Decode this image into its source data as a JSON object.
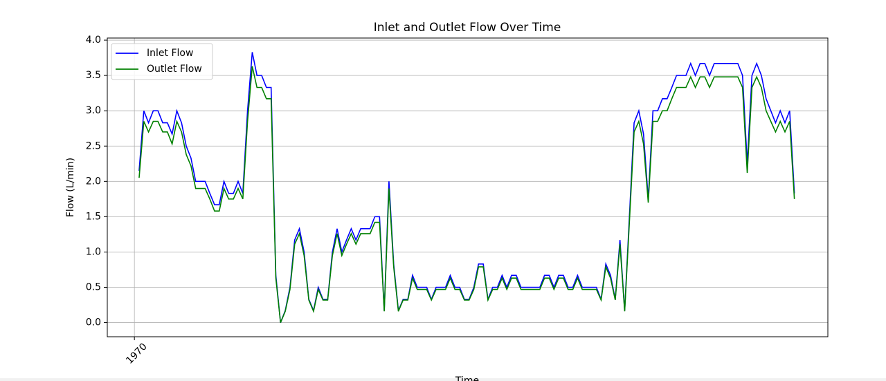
{
  "chart_data": {
    "type": "line",
    "title": "Inlet and Outlet Flow Over Time",
    "xlabel": "Time",
    "ylabel": "Flow (L/min)",
    "x": [
      0,
      1,
      2,
      3,
      4,
      5,
      6,
      7,
      8,
      9,
      10,
      11,
      12,
      13,
      14,
      15,
      16,
      17,
      18,
      19,
      20,
      21,
      22,
      23,
      24,
      25,
      26,
      27,
      28,
      29,
      30,
      31,
      32,
      33,
      34,
      35,
      36,
      37,
      38,
      39,
      40,
      41,
      42,
      43,
      44,
      45,
      46,
      47,
      48,
      49,
      50,
      51,
      52,
      53,
      54,
      55,
      56,
      57,
      58,
      59,
      60,
      61,
      62,
      63,
      64,
      65,
      66,
      67,
      68,
      69,
      70,
      71,
      72,
      73,
      74,
      75,
      76,
      77,
      78,
      79,
      80,
      81,
      82,
      83,
      84,
      85,
      86,
      87,
      88,
      89,
      90,
      91,
      92,
      93,
      94,
      95,
      96,
      97,
      98,
      99,
      100,
      101,
      102,
      103,
      104,
      105,
      106,
      107,
      108,
      109,
      110,
      111,
      112,
      113,
      114,
      115,
      116,
      117,
      118,
      119,
      120,
      121,
      122,
      123,
      124,
      125,
      126,
      127,
      128,
      129,
      130,
      131,
      132,
      133,
      134,
      135,
      136,
      137,
      138,
      139
    ],
    "series": [
      {
        "name": "Inlet Flow",
        "color": "#0000ff",
        "values": [
          2.15,
          3.0,
          2.83,
          3.0,
          3.0,
          2.83,
          2.83,
          2.67,
          3.0,
          2.83,
          2.5,
          2.33,
          2.0,
          2.0,
          2.0,
          1.83,
          1.67,
          1.67,
          2.0,
          1.83,
          1.83,
          2.0,
          1.83,
          3.0,
          3.83,
          3.5,
          3.5,
          3.33,
          3.33,
          0.67,
          0.0,
          0.17,
          0.5,
          1.17,
          1.33,
          1.0,
          0.33,
          0.17,
          0.5,
          0.33,
          0.33,
          1.0,
          1.33,
          1.0,
          1.17,
          1.33,
          1.17,
          1.33,
          1.33,
          1.33,
          1.5,
          1.5,
          0.17,
          2.0,
          0.83,
          0.17,
          0.33,
          0.33,
          0.67,
          0.5,
          0.5,
          0.5,
          0.33,
          0.5,
          0.5,
          0.5,
          0.67,
          0.5,
          0.5,
          0.33,
          0.33,
          0.5,
          0.83,
          0.83,
          0.33,
          0.5,
          0.5,
          0.67,
          0.5,
          0.67,
          0.67,
          0.5,
          0.5,
          0.5,
          0.5,
          0.5,
          0.67,
          0.67,
          0.5,
          0.67,
          0.67,
          0.5,
          0.5,
          0.67,
          0.5,
          0.5,
          0.5,
          0.5,
          0.33,
          0.83,
          0.67,
          0.33,
          1.17,
          0.17,
          1.5,
          2.83,
          3.0,
          2.67,
          1.75,
          3.0,
          3.0,
          3.17,
          3.17,
          3.33,
          3.5,
          3.5,
          3.5,
          3.67,
          3.5,
          3.67,
          3.67,
          3.5,
          3.67,
          3.67,
          3.67,
          3.67,
          3.67,
          3.67,
          3.5,
          2.25,
          3.5,
          3.67,
          3.5,
          3.17,
          3.0,
          2.83,
          3.0,
          2.83,
          3.0,
          1.83
        ]
      },
      {
        "name": "Outlet Flow",
        "color": "#008000",
        "values": [
          2.05,
          2.85,
          2.7,
          2.85,
          2.85,
          2.7,
          2.7,
          2.53,
          2.85,
          2.7,
          2.38,
          2.22,
          1.9,
          1.9,
          1.9,
          1.75,
          1.58,
          1.58,
          1.9,
          1.75,
          1.75,
          1.9,
          1.75,
          2.85,
          3.63,
          3.33,
          3.33,
          3.17,
          3.17,
          0.63,
          0.0,
          0.16,
          0.47,
          1.11,
          1.26,
          0.95,
          0.32,
          0.16,
          0.47,
          0.32,
          0.32,
          0.95,
          1.26,
          0.95,
          1.11,
          1.26,
          1.11,
          1.26,
          1.26,
          1.26,
          1.42,
          1.42,
          0.16,
          1.9,
          0.79,
          0.16,
          0.32,
          0.32,
          0.63,
          0.47,
          0.47,
          0.47,
          0.32,
          0.47,
          0.47,
          0.47,
          0.63,
          0.47,
          0.47,
          0.32,
          0.32,
          0.47,
          0.79,
          0.79,
          0.32,
          0.47,
          0.47,
          0.63,
          0.47,
          0.63,
          0.63,
          0.47,
          0.47,
          0.47,
          0.47,
          0.47,
          0.63,
          0.63,
          0.47,
          0.63,
          0.63,
          0.47,
          0.47,
          0.63,
          0.47,
          0.47,
          0.47,
          0.47,
          0.32,
          0.79,
          0.63,
          0.32,
          1.11,
          0.16,
          1.42,
          2.7,
          2.85,
          2.53,
          1.7,
          2.85,
          2.85,
          3.0,
          3.0,
          3.17,
          3.33,
          3.33,
          3.33,
          3.48,
          3.33,
          3.48,
          3.48,
          3.33,
          3.48,
          3.48,
          3.48,
          3.48,
          3.48,
          3.48,
          3.33,
          2.12,
          3.33,
          3.48,
          3.33,
          3.0,
          2.85,
          2.7,
          2.85,
          2.7,
          2.85,
          1.75
        ]
      }
    ],
    "xlim": [
      -6.75,
      146.1
    ],
    "xticks": [
      {
        "value": -1,
        "label": "1970"
      }
    ],
    "ylim": [
      -0.2,
      4.03
    ],
    "yticks": [
      {
        "value": 0,
        "label": "0.0"
      },
      {
        "value": 0.5,
        "label": "0.5"
      },
      {
        "value": 1,
        "label": "1.0"
      },
      {
        "value": 1.5,
        "label": "1.5"
      },
      {
        "value": 2,
        "label": "2.0"
      },
      {
        "value": 2.5,
        "label": "2.5"
      },
      {
        "value": 3,
        "label": "3.0"
      },
      {
        "value": 3.5,
        "label": "3.5"
      },
      {
        "value": 4,
        "label": "4.0"
      }
    ],
    "grid": true,
    "legend": "upper left"
  }
}
